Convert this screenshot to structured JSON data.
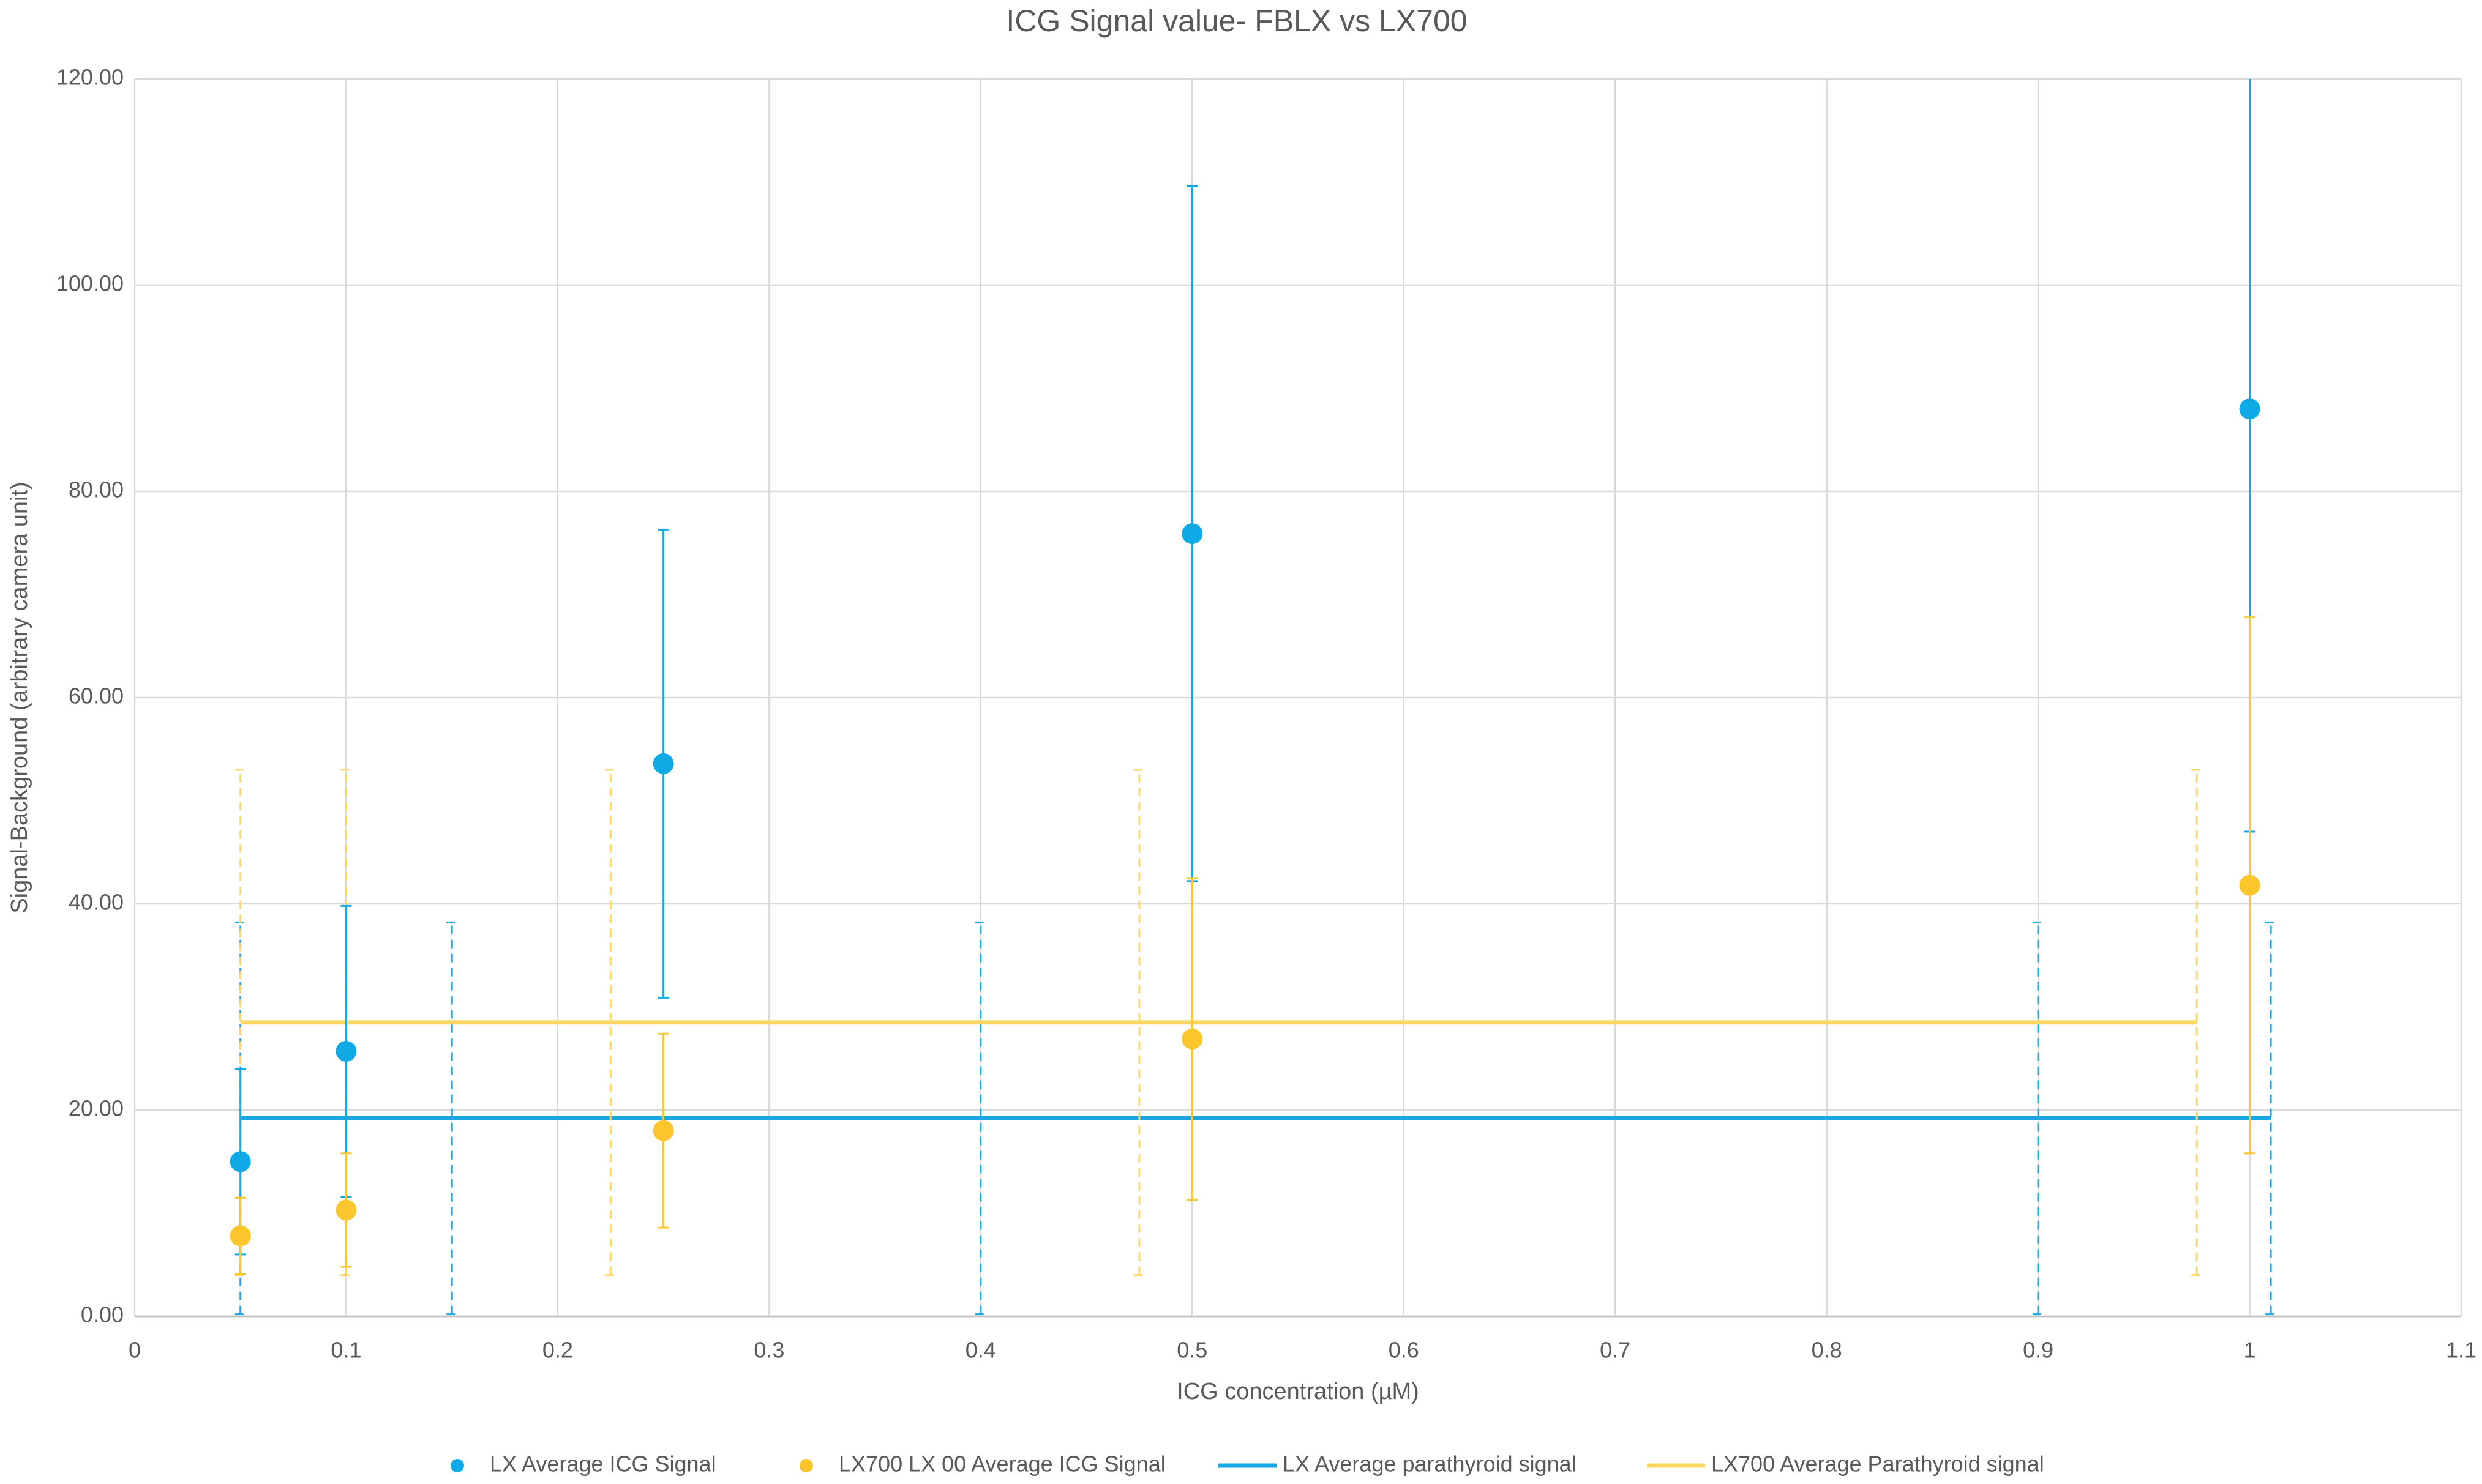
{
  "chart_data": {
    "type": "scatter",
    "title": "ICG Signal value- FBLX vs LX700",
    "x_label": "ICG concentration (µM)",
    "y_label": "Signal-Background (arbitrary camera unit)",
    "xlim": [
      0,
      1.1
    ],
    "xticks": [
      0,
      0.1,
      0.2,
      0.3,
      0.4,
      0.5,
      0.6,
      0.7,
      0.8,
      0.9,
      1,
      1.1
    ],
    "ylim": [
      0,
      120
    ],
    "yticks": [
      {
        "value": 0,
        "label": "0.00"
      },
      {
        "value": 20,
        "label": "20.00"
      },
      {
        "value": 40,
        "label": "40.00"
      },
      {
        "value": 60,
        "label": "60.00"
      },
      {
        "value": 80,
        "label": "80.00"
      },
      {
        "value": 100,
        "label": "100.00"
      },
      {
        "value": 120,
        "label": "120.00"
      }
    ],
    "grid": true,
    "legend": "bottom",
    "series": [
      {
        "name": "LX Average ICG Signal",
        "type": "scatter",
        "color": "#0fa9e6",
        "dashed_errors": false,
        "x": [
          0.05,
          0.1,
          0.25,
          0.5,
          1
        ],
        "values": [
          15,
          25.7,
          53.6,
          75.9,
          88
        ],
        "errors": [
          9,
          14.1,
          22.7,
          33.7,
          41
        ]
      },
      {
        "name": "LX700 LX 00 Average ICG Signal",
        "type": "scatter",
        "color": "#fbc62c",
        "dashed_errors": false,
        "x": [
          0.05,
          0.1,
          0.25,
          0.5,
          1
        ],
        "values": [
          7.8,
          10.3,
          18,
          26.9,
          41.8
        ],
        "errors": [
          3.7,
          5.5,
          9.4,
          15.6,
          26
        ]
      },
      {
        "name": "LX Average parathyroid signal",
        "type": "line",
        "color": "#1aa7e4",
        "dashed_errors": true,
        "x": [
          0.05,
          0.15,
          0.4,
          0.9,
          1.01
        ],
        "values": [
          19.2,
          19.2,
          19.2,
          19.2,
          19.2
        ],
        "errors": [
          19,
          19,
          19,
          19,
          19
        ]
      },
      {
        "name": "LX700 Average Parathyroid signal",
        "type": "line",
        "color": "#fdd766",
        "dashed_errors": true,
        "x": [
          0.05,
          0.1,
          0.225,
          0.475,
          0.975
        ],
        "values": [
          28.5,
          28.5,
          28.5,
          28.5,
          28.5
        ],
        "errors": [
          24.5,
          24.5,
          24.5,
          24.5,
          24.5
        ]
      }
    ]
  }
}
